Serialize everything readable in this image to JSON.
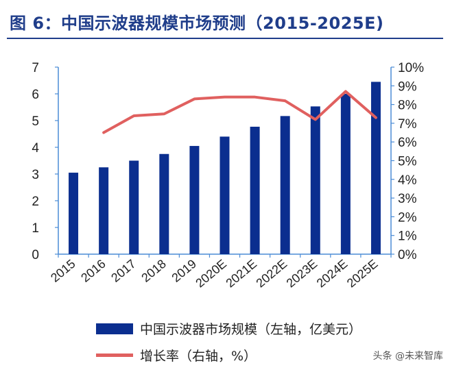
{
  "title": "图 6：中国示波器规模市场预测（2015-2025E)",
  "watermark": "头条 @未来智库",
  "colors": {
    "bar": "#0b2e8f",
    "line": "#e0605f",
    "axis": "#4a8bd6",
    "title": "#1f3d8a"
  },
  "chart_data": {
    "type": "bar",
    "categories": [
      "2015",
      "2016",
      "2017",
      "2018",
      "2019",
      "2020E",
      "2021E",
      "2022E",
      "2023E",
      "2024E",
      "2025E"
    ],
    "series": [
      {
        "name": "中国示波器市场规模（左轴，亿美元）",
        "type": "bar",
        "axis": "left",
        "values": [
          3.05,
          3.25,
          3.5,
          3.75,
          4.05,
          4.4,
          4.77,
          5.17,
          5.53,
          6.0,
          6.45
        ]
      },
      {
        "name": "增长率（右轴，%）",
        "type": "line",
        "axis": "right",
        "values": [
          null,
          6.5,
          7.4,
          7.5,
          8.3,
          8.4,
          8.4,
          8.2,
          7.2,
          8.7,
          7.3
        ]
      }
    ],
    "y_left": {
      "range": [
        0,
        7
      ],
      "ticks": [
        "0",
        "1",
        "2",
        "3",
        "4",
        "5",
        "6",
        "7"
      ]
    },
    "y_right": {
      "range": [
        0,
        10
      ],
      "ticks": [
        "0%",
        "1%",
        "2%",
        "3%",
        "4%",
        "5%",
        "6%",
        "7%",
        "8%",
        "9%",
        "10%"
      ]
    },
    "grid": false,
    "legend": "bottom"
  }
}
